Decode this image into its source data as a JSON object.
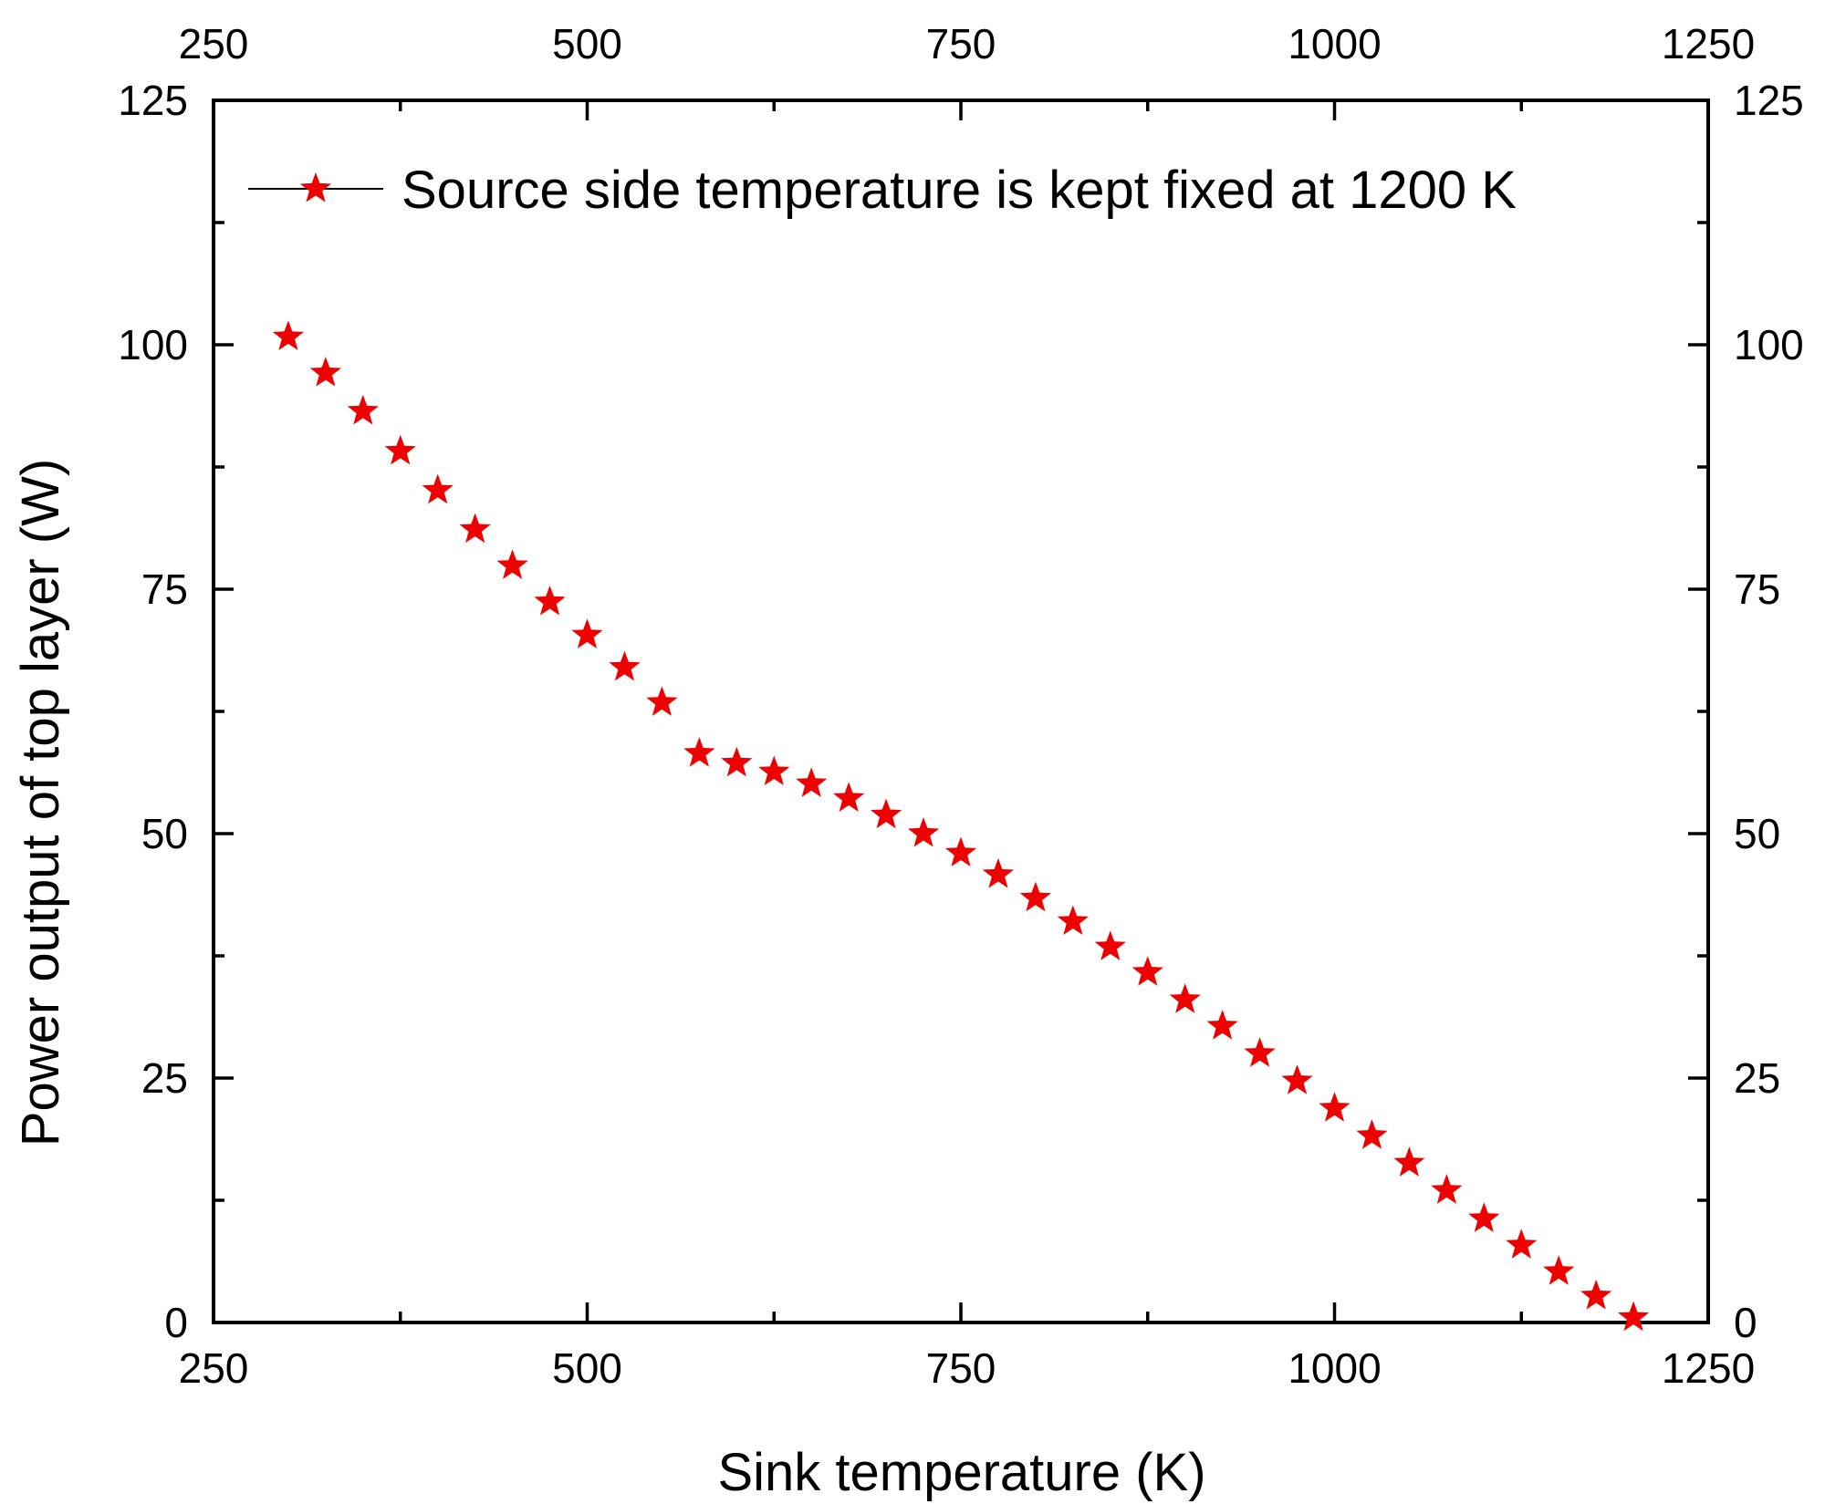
{
  "chart_data": {
    "type": "scatter",
    "title": "",
    "xlabel": "Sink temperature (K)",
    "ylabel": "Power output of top layer (W)",
    "xlim": [
      250,
      1250
    ],
    "ylim": [
      0,
      125
    ],
    "x_ticks": [
      250,
      500,
      750,
      1000,
      1250
    ],
    "y_ticks": [
      0,
      25,
      50,
      75,
      100,
      125
    ],
    "x_tick_labels": [
      "250",
      "500",
      "750",
      "1000",
      "1250"
    ],
    "y_tick_labels": [
      "0",
      "25",
      "50",
      "75",
      "100",
      "125"
    ],
    "mirror_axes": true,
    "grid": false,
    "legend_position": "top",
    "series": [
      {
        "name": "Source side temperature is kept fixed at 1200 K",
        "color": "#ee0000",
        "marker": "star",
        "x": [
          300,
          325,
          350,
          375,
          400,
          425,
          450,
          475,
          500,
          525,
          550,
          575,
          600,
          625,
          650,
          675,
          700,
          725,
          750,
          775,
          800,
          825,
          850,
          875,
          900,
          925,
          950,
          975,
          1000,
          1025,
          1050,
          1075,
          1100,
          1125,
          1150,
          1175,
          1200
        ],
        "y": [
          100.8,
          97.1,
          93.2,
          89.1,
          85.1,
          81.1,
          77.4,
          73.7,
          70.3,
          67.0,
          63.4,
          58.2,
          57.2,
          56.3,
          55.1,
          53.6,
          51.9,
          50.0,
          48.0,
          45.8,
          43.4,
          41.0,
          38.4,
          35.8,
          33.0,
          30.3,
          27.5,
          24.7,
          21.9,
          19.1,
          16.3,
          13.5,
          10.6,
          7.9,
          5.2,
          2.7,
          0.5
        ]
      }
    ]
  }
}
